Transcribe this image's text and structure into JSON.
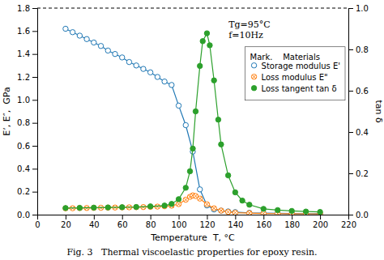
{
  "chart_data": {
    "type": "line",
    "xlabel": "Temperature  T, °C",
    "ylabel": "E’, E″,  GPa",
    "y2label": "tan δ",
    "annotation": "Tg=95°C\nf=10Hz",
    "caption": "Fig. 3   Thermal viscoelastic properties for epoxy resin.",
    "legend_title": "Mark.    Materials",
    "legend": "upper right",
    "grid": false,
    "xlim": [
      0,
      220
    ],
    "xticks": [
      0,
      20,
      40,
      60,
      80,
      100,
      120,
      140,
      160,
      180,
      200,
      220
    ],
    "ylim": [
      0,
      1.8
    ],
    "yticks": [
      {
        "value": 0,
        "label": "0.0"
      },
      0.2,
      0.4,
      0.6,
      0.8,
      {
        "value": 1.0,
        "label": "1.0"
      },
      1.2,
      1.4,
      1.6,
      1.8
    ],
    "y2lim": [
      0,
      1.0
    ],
    "y2ticks": [
      {
        "value": 0,
        "label": "0.0"
      },
      0.2,
      0.4,
      0.6,
      0.8,
      {
        "value": 1.0,
        "label": "1.0"
      }
    ],
    "series": [
      {
        "name": "Storage modulus E'",
        "marker": "circle-open",
        "axis": "y",
        "x": [
          20,
          25,
          30,
          35,
          40,
          45,
          50,
          55,
          60,
          65,
          70,
          75,
          80,
          85,
          90,
          95,
          100,
          105,
          110,
          115,
          120,
          125,
          130,
          135,
          140,
          150,
          160,
          170,
          180,
          190,
          200
        ],
        "values": [
          1.62,
          1.59,
          1.56,
          1.53,
          1.5,
          1.47,
          1.43,
          1.4,
          1.37,
          1.33,
          1.3,
          1.27,
          1.24,
          1.2,
          1.16,
          1.13,
          0.95,
          0.78,
          0.55,
          0.22,
          0.08,
          0.045,
          0.035,
          0.028,
          0.022,
          0.016,
          0.013,
          0.011,
          0.01,
          0.009,
          0.008
        ]
      },
      {
        "name": "Loss modulus E\"",
        "marker": "circle-x",
        "axis": "y",
        "x": [
          20,
          25,
          30,
          35,
          40,
          45,
          50,
          55,
          60,
          65,
          70,
          75,
          80,
          85,
          90,
          95,
          100,
          105,
          108,
          110,
          112,
          115,
          120,
          125,
          130,
          135,
          140,
          150,
          160,
          170,
          180,
          190,
          200
        ],
        "values": [
          0.055,
          0.056,
          0.057,
          0.058,
          0.059,
          0.06,
          0.061,
          0.062,
          0.063,
          0.064,
          0.065,
          0.066,
          0.068,
          0.07,
          0.073,
          0.078,
          0.092,
          0.13,
          0.155,
          0.168,
          0.162,
          0.14,
          0.09,
          0.055,
          0.035,
          0.024,
          0.017,
          0.013,
          0.01,
          0.009,
          0.008,
          0.007,
          0.007
        ]
      },
      {
        "name": "Loss tangent tan δ",
        "marker": "circle",
        "axis": "y2",
        "x": [
          20,
          30,
          40,
          50,
          60,
          70,
          80,
          90,
          95,
          100,
          105,
          108,
          110,
          112,
          115,
          117,
          120,
          122,
          125,
          128,
          130,
          135,
          140,
          145,
          150,
          160,
          170,
          180,
          190,
          200
        ],
        "values": [
          0.032,
          0.033,
          0.034,
          0.035,
          0.036,
          0.037,
          0.04,
          0.044,
          0.052,
          0.075,
          0.13,
          0.21,
          0.32,
          0.5,
          0.72,
          0.84,
          0.878,
          0.82,
          0.65,
          0.46,
          0.34,
          0.19,
          0.108,
          0.068,
          0.048,
          0.028,
          0.022,
          0.018,
          0.015,
          0.013
        ]
      }
    ]
  }
}
